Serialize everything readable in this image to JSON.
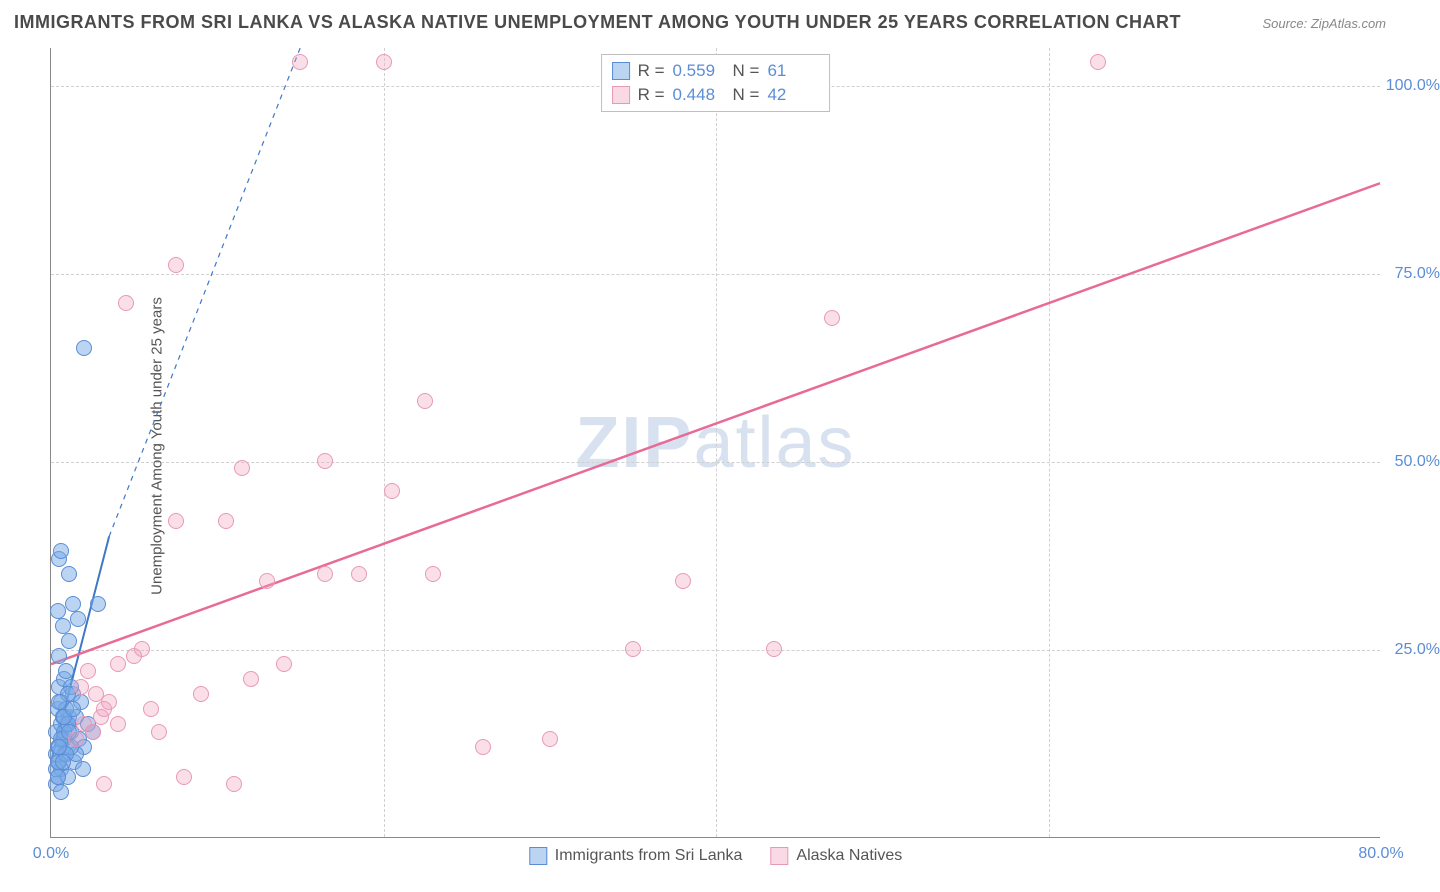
{
  "title": "IMMIGRANTS FROM SRI LANKA VS ALASKA NATIVE UNEMPLOYMENT AMONG YOUTH UNDER 25 YEARS CORRELATION CHART",
  "source_label": "Source: ZipAtlas.com",
  "watermark": {
    "part1": "ZIP",
    "part2": "atlas"
  },
  "ylabel": "Unemployment Among Youth under 25 years",
  "chart": {
    "type": "scatter",
    "xlim": [
      0,
      80
    ],
    "ylim": [
      0,
      105
    ],
    "x_ticks": [
      0.0,
      80.0
    ],
    "y_ticks": [
      25.0,
      50.0,
      75.0,
      100.0
    ],
    "x_tick_format": "percent1",
    "y_tick_format": "percent1",
    "x_grid": [
      20,
      40,
      60
    ],
    "background_color": "#ffffff",
    "grid_color": "#d0d0d0",
    "axis_color": "#888888",
    "tick_label_color": "#5b8dd6",
    "tick_font_size": 16,
    "marker_size": 16,
    "series": [
      {
        "key": "blue",
        "name": "Immigrants from Sri Lanka",
        "color_fill": "rgba(120,170,230,0.5)",
        "color_stroke": "#5b8dd6",
        "R": "0.559",
        "N": "61",
        "trend": {
          "x1": 0,
          "y1": 10,
          "x2": 3.5,
          "y2": 40,
          "dash_ext": {
            "x2": 15,
            "y2": 105
          },
          "stroke": "#3f78c6",
          "width": 2
        },
        "points": [
          [
            0.3,
            7
          ],
          [
            0.4,
            8
          ],
          [
            0.6,
            9
          ],
          [
            0.5,
            10
          ],
          [
            0.8,
            11
          ],
          [
            1.0,
            12
          ],
          [
            0.7,
            13
          ],
          [
            1.2,
            14
          ],
          [
            0.9,
            15
          ],
          [
            1.1,
            16
          ],
          [
            0.4,
            17
          ],
          [
            0.6,
            18
          ],
          [
            1.3,
            19
          ],
          [
            0.5,
            20
          ],
          [
            0.8,
            21
          ],
          [
            1.5,
            16
          ],
          [
            1.7,
            13
          ],
          [
            1.0,
            8
          ],
          [
            1.4,
            10
          ],
          [
            0.3,
            14
          ],
          [
            2.0,
            12
          ],
          [
            2.2,
            15
          ],
          [
            0.6,
            6
          ],
          [
            1.8,
            18
          ],
          [
            1.2,
            20
          ],
          [
            2.5,
            14
          ],
          [
            0.9,
            22
          ],
          [
            0.5,
            24
          ],
          [
            1.1,
            26
          ],
          [
            0.7,
            28
          ],
          [
            0.4,
            30
          ],
          [
            1.6,
            29
          ],
          [
            1.3,
            31
          ],
          [
            2.8,
            31
          ],
          [
            1.1,
            35
          ],
          [
            0.5,
            37
          ],
          [
            0.6,
            38
          ],
          [
            2.0,
            65
          ],
          [
            0.8,
            13
          ],
          [
            0.3,
            11
          ],
          [
            1.9,
            9
          ],
          [
            1.5,
            11
          ],
          [
            0.4,
            12
          ],
          [
            0.6,
            15
          ],
          [
            0.9,
            17
          ],
          [
            1.0,
            19
          ],
          [
            0.7,
            16
          ],
          [
            0.5,
            18
          ],
          [
            0.8,
            14
          ],
          [
            1.2,
            12
          ],
          [
            0.3,
            9
          ],
          [
            0.4,
            10
          ],
          [
            1.0,
            15
          ],
          [
            0.6,
            13
          ],
          [
            0.9,
            11
          ],
          [
            0.5,
            12
          ],
          [
            0.8,
            16
          ],
          [
            1.1,
            14
          ],
          [
            0.7,
            10
          ],
          [
            0.4,
            8
          ],
          [
            1.3,
            17
          ]
        ]
      },
      {
        "key": "pink",
        "name": "Alaska Natives",
        "color_fill": "rgba(240,160,190,0.35)",
        "color_stroke": "#e89ab5",
        "R": "0.448",
        "N": "42",
        "trend": {
          "x1": 0,
          "y1": 23,
          "x2": 80,
          "y2": 87,
          "stroke": "#e86a97",
          "width": 2.5
        },
        "points": [
          [
            1.5,
            13
          ],
          [
            2.0,
            15
          ],
          [
            2.5,
            14
          ],
          [
            3.0,
            16
          ],
          [
            3.5,
            18
          ],
          [
            1.8,
            20
          ],
          [
            2.2,
            22
          ],
          [
            2.7,
            19
          ],
          [
            3.2,
            17
          ],
          [
            4.0,
            23
          ],
          [
            5.0,
            24
          ],
          [
            5.5,
            25
          ],
          [
            3.2,
            7
          ],
          [
            6.5,
            14
          ],
          [
            8.0,
            8
          ],
          [
            11.0,
            7
          ],
          [
            13.0,
            34
          ],
          [
            16.5,
            35
          ],
          [
            18.5,
            35
          ],
          [
            10.5,
            42
          ],
          [
            16.5,
            50
          ],
          [
            11.5,
            49
          ],
          [
            20.5,
            46
          ],
          [
            22.5,
            58
          ],
          [
            23.0,
            35
          ],
          [
            26.0,
            12
          ],
          [
            30.0,
            13
          ],
          [
            35.0,
            25
          ],
          [
            38.0,
            34
          ],
          [
            43.5,
            25
          ],
          [
            47.0,
            69
          ],
          [
            4.5,
            71
          ],
          [
            7.5,
            76
          ],
          [
            15.0,
            103
          ],
          [
            20.0,
            103
          ],
          [
            63.0,
            103
          ],
          [
            7.5,
            42
          ],
          [
            4.0,
            15
          ],
          [
            6.0,
            17
          ],
          [
            9.0,
            19
          ],
          [
            12.0,
            21
          ],
          [
            14.0,
            23
          ]
        ]
      }
    ]
  },
  "stats_labels": {
    "R": "R =",
    "N": "N ="
  },
  "legend_bottom": [
    {
      "swatch": "blue",
      "label_key": "chart.series.0.name"
    },
    {
      "swatch": "pink",
      "label_key": "chart.series.1.name"
    }
  ]
}
